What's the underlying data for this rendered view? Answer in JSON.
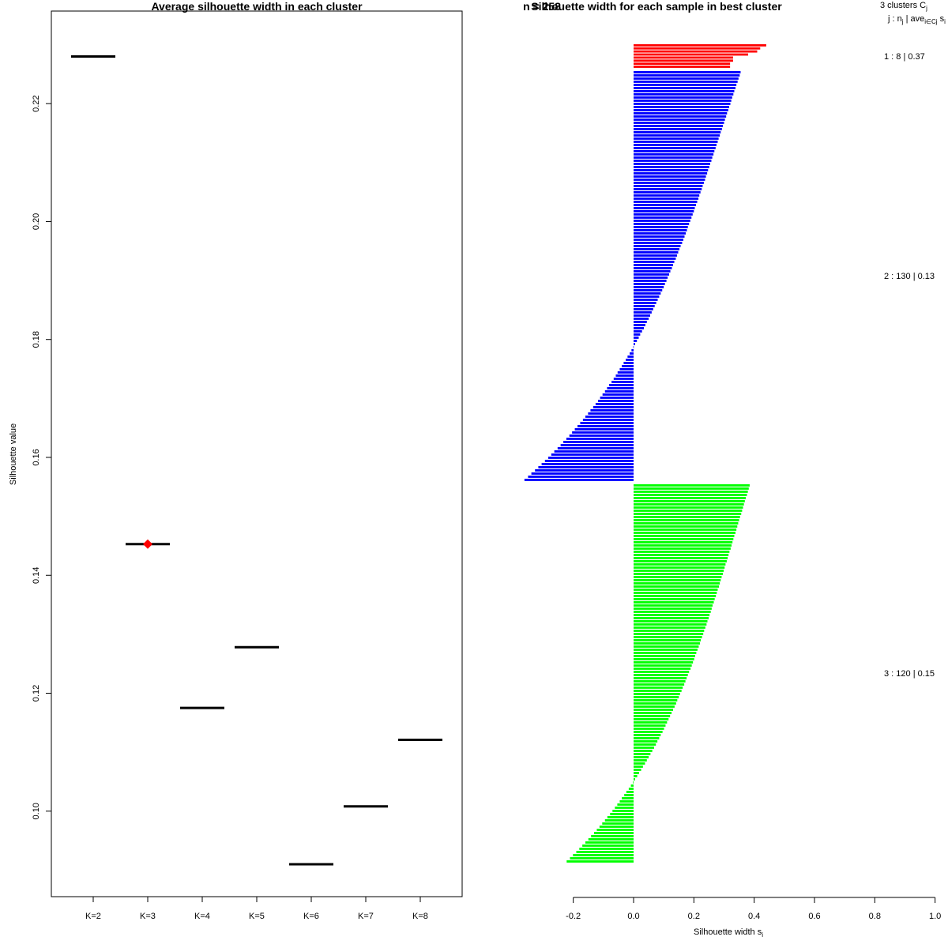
{
  "chart_data": [
    {
      "type": "scatter",
      "title": "Average silhouette width in each cluster",
      "xlabel": "",
      "ylabel": "Silhouette value",
      "categories": [
        "K=2",
        "K=3",
        "K=4",
        "K=5",
        "K=6",
        "K=7",
        "K=8"
      ],
      "values": [
        0.228,
        0.1453,
        0.1175,
        0.1278,
        0.091,
        0.1008,
        0.1121
      ],
      "best_index": 1,
      "best_color": "#ff0000",
      "ylim": [
        0.0855,
        0.2357
      ],
      "yticks": [
        "0.10",
        "0.12",
        "0.14",
        "0.16",
        "0.18",
        "0.20",
        "0.22"
      ]
    },
    {
      "type": "bar",
      "orientation": "horizontal",
      "title": "Silhouette width for each sample in best cluster",
      "overlap_text": "n = 258",
      "xlabel": "Silhouette width s",
      "xlabel_subscript": "i",
      "xlim": [
        -0.2,
        1.0
      ],
      "xticks": [
        "-0.2",
        "0.0",
        "0.2",
        "0.4",
        "0.6",
        "0.8",
        "1.0"
      ],
      "legend_header_1": "3 clusters C",
      "legend_header_1_sub": "j",
      "legend_header_2_a": "j : n",
      "legend_header_2_sub1": "j",
      "legend_header_2_b": " | ave",
      "legend_header_2_sub2": "i∈Cj",
      "legend_header_2_c": " s",
      "legend_header_2_sub3": "i",
      "clusters": [
        {
          "label": "1 :  8  |  0.37",
          "n": 8,
          "avg": 0.37,
          "color": "#ff0000",
          "values": [
            0.44,
            0.42,
            0.41,
            0.38,
            0.33,
            0.33,
            0.32,
            0.32
          ]
        },
        {
          "label": "2 :  130  |  0.13",
          "n": 130,
          "avg": 0.13,
          "color": "#0000ff",
          "start": 0.355,
          "end": -0.362
        },
        {
          "label": "3 :  120  |  0.15",
          "n": 120,
          "avg": 0.15,
          "color": "#00ff00",
          "start": 0.385,
          "end": -0.222
        }
      ]
    }
  ]
}
